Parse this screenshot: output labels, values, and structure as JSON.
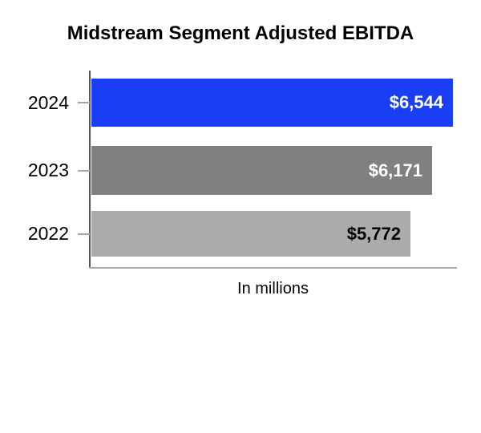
{
  "title": "Midstream Segment Adjusted EBITDA",
  "chart_data": {
    "type": "bar",
    "orientation": "horizontal",
    "title": "Midstream Segment Adjusted EBITDA",
    "categories": [
      "2024",
      "2023",
      "2022"
    ],
    "values": [
      6544,
      6171,
      5772
    ],
    "value_labels": [
      "$6,544",
      "$6,171",
      "$5,772"
    ],
    "xlabel": "In millions",
    "xlim": [
      0,
      6650
    ],
    "grid": false,
    "legend": false,
    "colors": {
      "bars": [
        "#1A3EF5",
        "#808080",
        "#ABABAB"
      ],
      "value_labels": [
        "#FFFFFF",
        "#FFFFFF",
        "#000000"
      ],
      "category_labels": "#000000",
      "axis_vertical": "#595959",
      "axis_horizontal": "#A6A6A6",
      "tick": "#A6A6A6"
    }
  }
}
